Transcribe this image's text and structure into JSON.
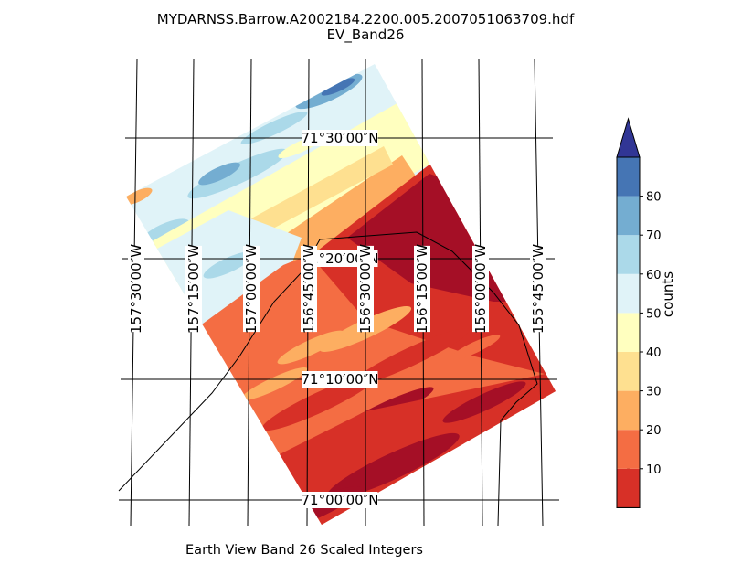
{
  "map": {
    "title": "MYDARNSS.Barrow.A2002184.2200.005.2007051063709.hdf",
    "subtitle": "EV_Band26",
    "xlabel": "Earth View Band 26 Scaled Integers",
    "latitude_labels": [
      "71°30′00″N",
      "71°20′00″N",
      "71°10′00″N",
      "71°00′00″N"
    ],
    "longitude_labels": [
      "157°30′00″W",
      "157°15′00″W",
      "157°00′00″W",
      "156°45′00″W",
      "156°30′00″W",
      "156°15′00″W",
      "156°00′00″W",
      "155°45′00″W"
    ]
  },
  "colorbar": {
    "label": "counts",
    "ticks": [
      "10",
      "20",
      "30",
      "40",
      "50",
      "60",
      "70",
      "80"
    ],
    "colors": [
      "#a50f26",
      "#d73027",
      "#f46d43",
      "#fdae61",
      "#fee090",
      "#ffffbf",
      "#e0f3f8",
      "#abd9e9",
      "#74add1",
      "#4575b4",
      "#313695"
    ]
  }
}
